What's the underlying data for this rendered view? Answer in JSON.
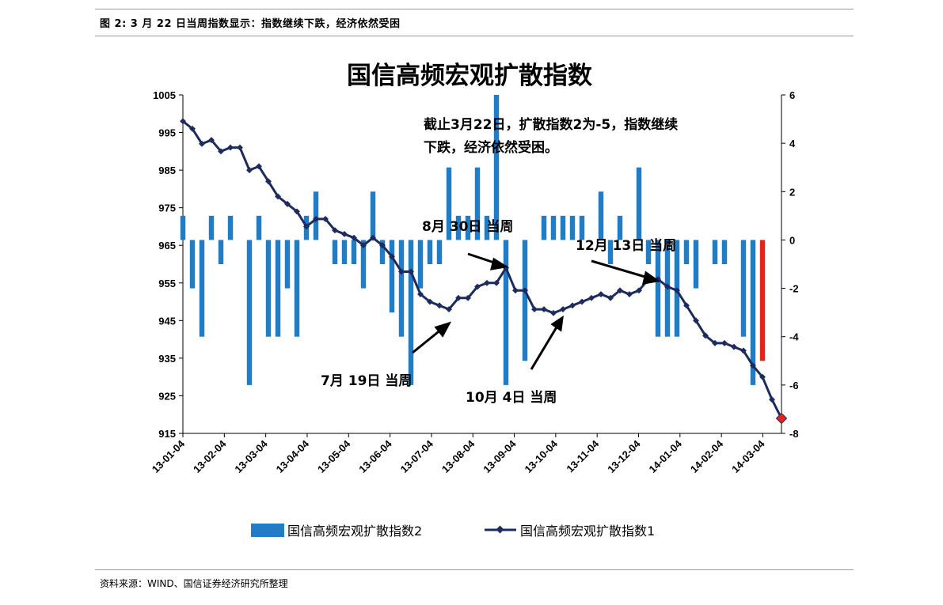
{
  "caption": "图 2:  3 月 22 日当周指数显示：指数继续下跌，经济依然受困",
  "source": "资料来源：WIND、国信证券经济研究所整理",
  "chart_data": {
    "type": "bar+line",
    "title": "国信高频宏观扩散指数",
    "x_labels": [
      "13-01-04",
      "13-02-04",
      "13-03-04",
      "13-04-04",
      "13-05-04",
      "13-06-04",
      "13-07-04",
      "13-08-04",
      "13-09-04",
      "13-10-04",
      "13-11-04",
      "13-12-04",
      "14-01-04",
      "14-02-04",
      "14-03-04"
    ],
    "y_left": {
      "min": 915,
      "max": 1005,
      "step": 10,
      "ticks": [
        "915",
        "925",
        "935",
        "945",
        "955",
        "965",
        "975",
        "985",
        "995",
        "1005"
      ]
    },
    "y_right": {
      "min": -8,
      "max": 6,
      "step": 2,
      "ticks": [
        "-8",
        "-6",
        "-4",
        "-2",
        "0",
        "2",
        "4",
        "6"
      ]
    },
    "series": [
      {
        "name": "国信高频宏观扩散指数2",
        "type": "bar",
        "axis": "right",
        "color": "#1f7cc5",
        "highlight_color": "#e8221b",
        "values": [
          1,
          -2,
          -4,
          1,
          -1,
          1,
          0,
          -6,
          1,
          -4,
          -4,
          -2,
          -4,
          1,
          2,
          0,
          -1,
          -1,
          -1,
          -2,
          2,
          -1,
          -3,
          -4,
          -6,
          -2,
          -1,
          -1,
          3,
          1,
          1,
          3,
          1,
          6,
          -6,
          0,
          -5,
          0,
          1,
          1,
          1,
          1,
          1,
          0,
          2,
          -1,
          1,
          0,
          3,
          -1,
          -4,
          -4,
          -4,
          -1,
          -2,
          0,
          -1,
          -1,
          0,
          -4,
          -6,
          -5
        ]
      },
      {
        "name": "国信高频宏观扩散指数1",
        "type": "line",
        "axis": "left",
        "color": "#1d2b5f",
        "last_marker_color": "#e8221b",
        "values": [
          998,
          996,
          992,
          993,
          990,
          991,
          991,
          985,
          986,
          982,
          978,
          976,
          974,
          970,
          972,
          972,
          969,
          968,
          967,
          965,
          967,
          965,
          962,
          958,
          958,
          952,
          950,
          949,
          948,
          951,
          951,
          954,
          955,
          955,
          959,
          953,
          953,
          948,
          948,
          947,
          948,
          949,
          950,
          951,
          952,
          951,
          953,
          952,
          953,
          956,
          956,
          954,
          953,
          949,
          945,
          941,
          939,
          939,
          938,
          937,
          933,
          930,
          924,
          919
        ]
      }
    ],
    "annotations": [
      {
        "id": "note",
        "lines": [
          "截止3月22日，扩散指数2为-5，指数继续",
          "下跌，经济依然受困。"
        ]
      },
      {
        "id": "jul",
        "text": "7月 19日 当周"
      },
      {
        "id": "aug",
        "text": "8月 30日 当周"
      },
      {
        "id": "oct",
        "text": "10月 4日 当周"
      },
      {
        "id": "dec",
        "text": "12月 13日 当周"
      }
    ],
    "legend_position": "bottom"
  }
}
